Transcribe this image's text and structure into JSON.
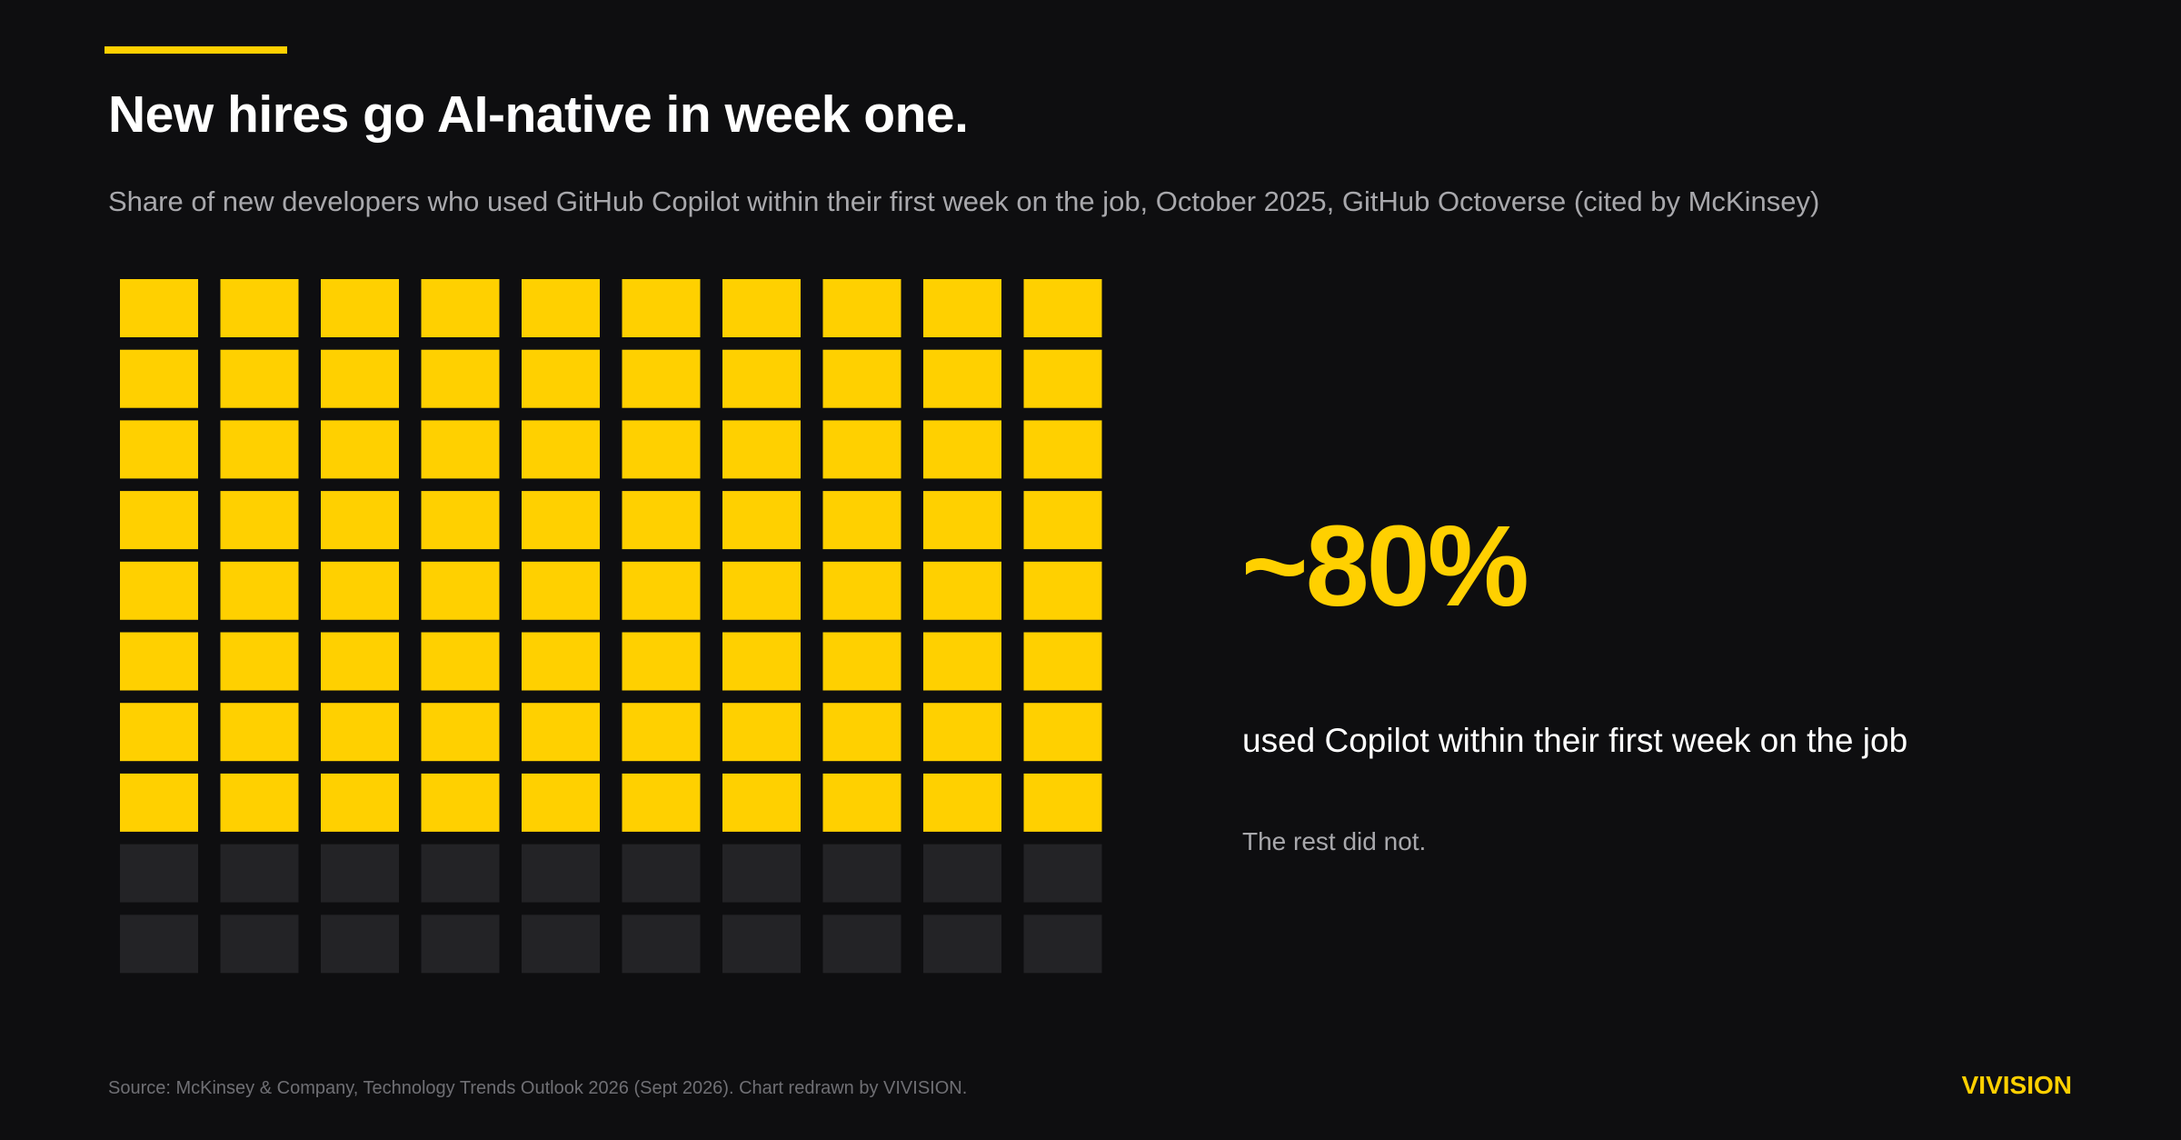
{
  "header": {
    "title": "New hires go AI-native in week one.",
    "subtitle": "Share of new developers who used GitHub Copilot within their first week on the job, October 2025, GitHub Octoverse (cited by McKinsey)"
  },
  "chart_data": {
    "type": "waffle",
    "value_percent": 80,
    "total_cells": 100,
    "rows": 10,
    "columns": 10,
    "filled_cells": 80,
    "fill_order": "row-major from top-left",
    "title": "",
    "xlabel": "",
    "ylabel": ""
  },
  "callout": {
    "value": "~80%",
    "caption": "used Copilot within their first week on the job",
    "note": "The rest did not."
  },
  "footer": {
    "source": "Source: McKinsey & Company, Technology Trends Outlook 2026 (Sept 2026). Chart redrawn by VIVISION.",
    "brand": "VIVISION"
  },
  "colors": {
    "background": "#0e0e10",
    "accent": "#ffd000",
    "empty_cell": "#232326",
    "muted_text": "#a8a8ac"
  }
}
